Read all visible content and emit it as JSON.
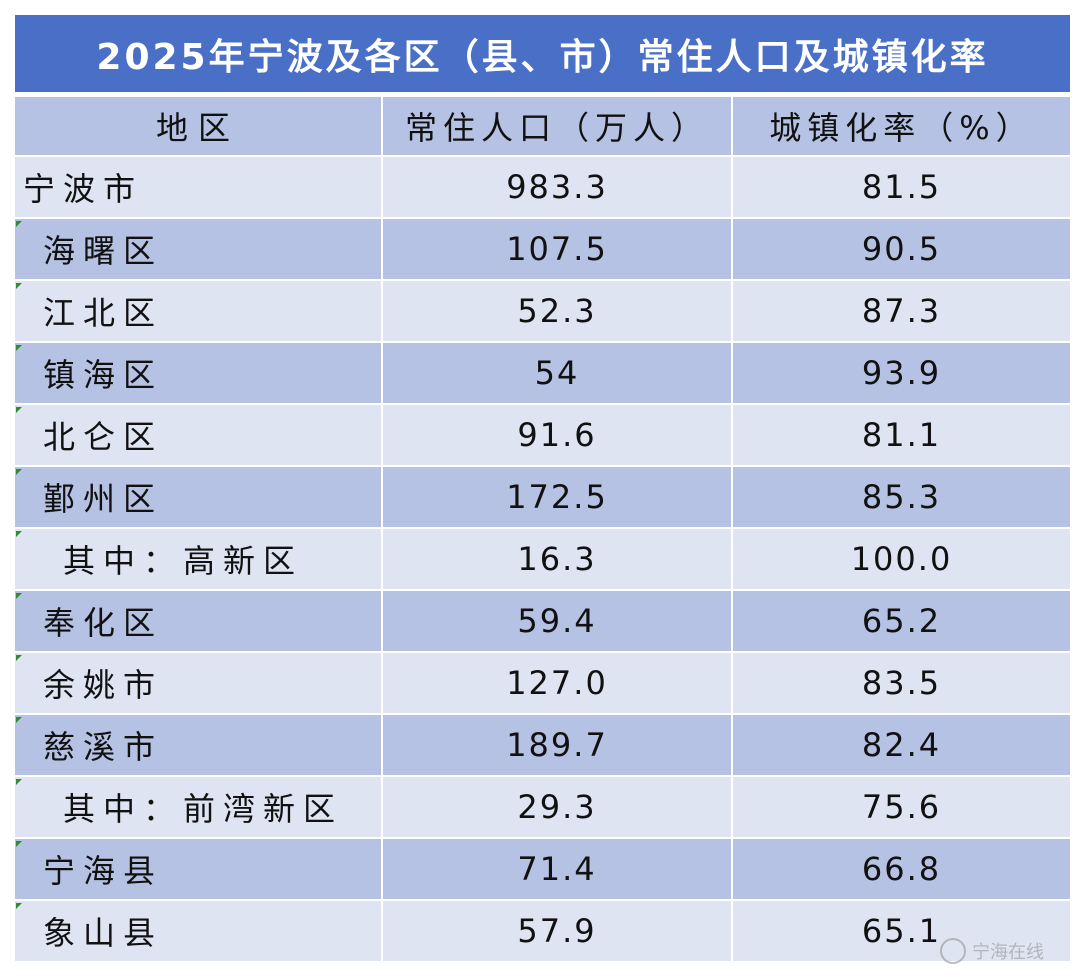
{
  "title": "2025年宁波及各区（县、市）常住人口及城镇化率",
  "columns": [
    "地区",
    "常住人口（万人）",
    "城镇化率（%）"
  ],
  "rows": [
    {
      "region": "宁波市",
      "population": "983.3",
      "urbanization": "81.5"
    },
    {
      "region": "海曙区",
      "population": "107.5",
      "urbanization": "90.5"
    },
    {
      "region": "江北区",
      "population": "52.3",
      "urbanization": "87.3"
    },
    {
      "region": "镇海区",
      "population": "54",
      "urbanization": "93.9"
    },
    {
      "region": "北仑区",
      "population": "91.6",
      "urbanization": "81.1"
    },
    {
      "region": "鄞州区",
      "population": "172.5",
      "urbanization": "85.3"
    },
    {
      "region": "其中：高新区",
      "population": "16.3",
      "urbanization": "100.0"
    },
    {
      "region": "奉化区",
      "population": "59.4",
      "urbanization": "65.2"
    },
    {
      "region": "余姚市",
      "population": "127.0",
      "urbanization": "83.5"
    },
    {
      "region": "慈溪市",
      "population": "189.7",
      "urbanization": "82.4"
    },
    {
      "region": "其中：前湾新区",
      "population": "29.3",
      "urbanization": "75.6"
    },
    {
      "region": "宁海县",
      "population": "71.4",
      "urbanization": "66.8"
    },
    {
      "region": "象山县",
      "population": "57.9",
      "urbanization": "65.1"
    }
  ],
  "watermark": "宁海在线",
  "colors": {
    "title_bg": "#4a6fc6",
    "row_light": "#dfe4f2",
    "row_dark": "#b6c2e3",
    "marker": "#2e8b3a"
  }
}
